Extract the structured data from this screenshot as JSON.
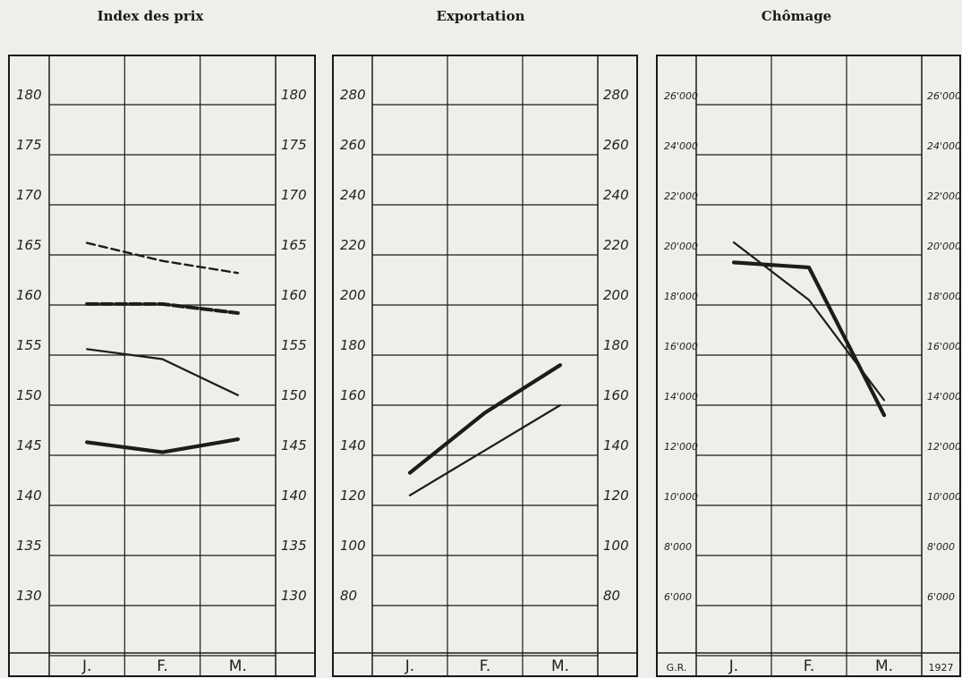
{
  "chart_data": [
    {
      "type": "line",
      "title": "Index des prix",
      "categories": [
        "J.",
        "F.",
        "M."
      ],
      "ylim": [
        125,
        185
      ],
      "yticks": [
        "130",
        "135",
        "140",
        "145",
        "150",
        "155",
        "160",
        "165",
        "170",
        "175",
        "180"
      ],
      "grid": true,
      "series": [
        {
          "values": [
            166.2,
            164.4,
            163.2
          ],
          "style": "dashed"
        },
        {
          "values": [
            160.1,
            160.1,
            159.2
          ],
          "style": "dashed-bold"
        },
        {
          "values": [
            155.6,
            154.6,
            151.0
          ],
          "style": "solid"
        },
        {
          "values": [
            146.3,
            145.3,
            146.6
          ],
          "style": "solid-bold"
        }
      ]
    },
    {
      "type": "line",
      "title": "Exportation",
      "categories": [
        "J.",
        "F.",
        "M."
      ],
      "ylim": [
        60,
        300
      ],
      "yticks": [
        "80",
        "100",
        "120",
        "140",
        "160",
        "180",
        "200",
        "220",
        "240",
        "260",
        "280"
      ],
      "grid": true,
      "series": [
        {
          "values": [
            133,
            157,
            176
          ],
          "style": "solid-bold"
        },
        {
          "values": [
            124,
            142,
            160
          ],
          "style": "solid"
        }
      ]
    },
    {
      "type": "line",
      "title": "Chômage",
      "categories": [
        "J.",
        "F.",
        "M."
      ],
      "ylim": [
        4000,
        28000
      ],
      "yticks": [
        "6'000",
        "8'000",
        "10'000",
        "12'000",
        "14'000",
        "16'000",
        "18'000",
        "20'000",
        "22'000",
        "24'000",
        "26'000"
      ],
      "grid": true,
      "corner_left": "G.R.",
      "corner_right": "1927",
      "series": [
        {
          "values": [
            19700,
            19500,
            13600
          ],
          "style": "solid-bold"
        },
        {
          "values": [
            20500,
            18200,
            14200
          ],
          "style": "solid"
        }
      ]
    }
  ]
}
